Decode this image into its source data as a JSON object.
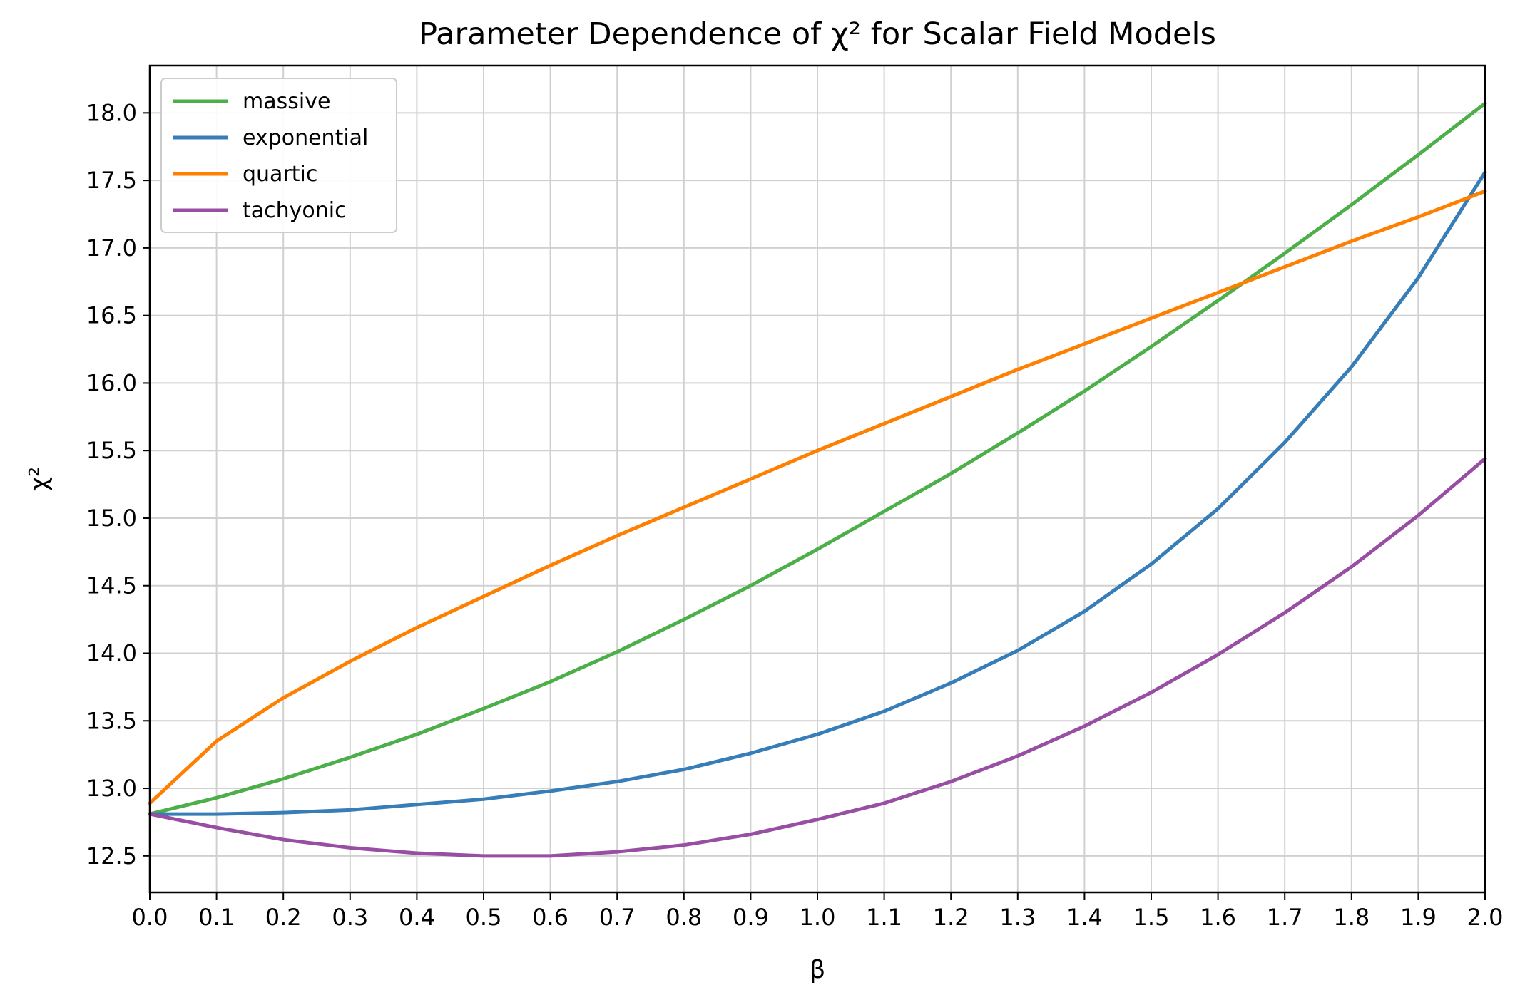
{
  "chart_data": {
    "type": "line",
    "title": "Parameter Dependence of χ² for Scalar Field Models",
    "xlabel": "β",
    "ylabel": "χ²",
    "xlim": [
      0.0,
      2.0
    ],
    "ylim": [
      12.23,
      18.35
    ],
    "grid": true,
    "legend_position": "top-left",
    "x": [
      0.0,
      0.1,
      0.2,
      0.3,
      0.4,
      0.5,
      0.6,
      0.7,
      0.8,
      0.9,
      1.0,
      1.1,
      1.2,
      1.3,
      1.4,
      1.5,
      1.6,
      1.7,
      1.8,
      1.9,
      2.0
    ],
    "x_ticks": [
      "0.0",
      "0.1",
      "0.2",
      "0.3",
      "0.4",
      "0.5",
      "0.6",
      "0.7",
      "0.8",
      "0.9",
      "1.0",
      "1.1",
      "1.2",
      "1.3",
      "1.4",
      "1.5",
      "1.6",
      "1.7",
      "1.8",
      "1.9",
      "2.0"
    ],
    "y_ticks": [
      12.5,
      13.0,
      13.5,
      14.0,
      14.5,
      15.0,
      15.5,
      16.0,
      16.5,
      17.0,
      17.5,
      18.0
    ],
    "y_tick_labels": [
      "12.5",
      "13.0",
      "13.5",
      "14.0",
      "14.5",
      "15.0",
      "15.5",
      "16.0",
      "16.5",
      "17.0",
      "17.5",
      "18.0"
    ],
    "series": [
      {
        "name": "massive",
        "color": "#4daf4a",
        "values": [
          12.81,
          12.93,
          13.07,
          13.23,
          13.4,
          13.59,
          13.79,
          14.01,
          14.25,
          14.5,
          14.77,
          15.05,
          15.33,
          15.63,
          15.94,
          16.27,
          16.61,
          16.96,
          17.32,
          17.69,
          18.07
        ]
      },
      {
        "name": "exponential",
        "color": "#377eb8",
        "values": [
          12.81,
          12.81,
          12.82,
          12.84,
          12.88,
          12.92,
          12.98,
          13.05,
          13.14,
          13.26,
          13.4,
          13.57,
          13.78,
          14.02,
          14.31,
          14.66,
          15.07,
          15.56,
          16.12,
          16.78,
          17.56
        ]
      },
      {
        "name": "quartic",
        "color": "#ff7f00",
        "values": [
          12.89,
          13.35,
          13.67,
          13.94,
          14.19,
          14.42,
          14.65,
          14.87,
          15.08,
          15.29,
          15.5,
          15.7,
          15.9,
          16.1,
          16.29,
          16.48,
          16.67,
          16.86,
          17.05,
          17.23,
          17.42
        ]
      },
      {
        "name": "tachyonic",
        "color": "#984ea3",
        "values": [
          12.81,
          12.71,
          12.62,
          12.56,
          12.52,
          12.5,
          12.5,
          12.53,
          12.58,
          12.66,
          12.77,
          12.89,
          13.05,
          13.24,
          13.46,
          13.71,
          13.99,
          14.3,
          14.64,
          15.02,
          15.44
        ]
      }
    ]
  }
}
